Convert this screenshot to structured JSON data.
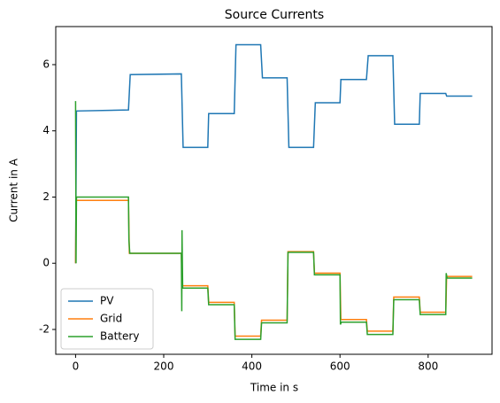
{
  "chart_data": {
    "type": "line",
    "title": "Source Currents",
    "x_label": "Time in s",
    "y_label": "Current in A",
    "xlim": [
      -45,
      945
    ],
    "ylim": [
      -2.75,
      7.15
    ],
    "xticks": [
      0,
      200,
      400,
      600,
      800
    ],
    "yticks": [
      -2,
      0,
      2,
      4,
      6
    ],
    "legend": "lower left",
    "grid": false,
    "series": [
      {
        "name": "PV",
        "color": "#1f77b4",
        "x": [
          0,
          2,
          120,
          124,
          240,
          244,
          300,
          302,
          360,
          364,
          420,
          424,
          480,
          484,
          540,
          544,
          600,
          602,
          660,
          664,
          720,
          724,
          780,
          782,
          840,
          842,
          900
        ],
        "values": [
          0,
          4.6,
          4.63,
          5.7,
          5.72,
          3.5,
          3.5,
          4.52,
          4.52,
          6.6,
          6.6,
          5.6,
          5.6,
          3.5,
          3.5,
          4.85,
          4.85,
          5.55,
          5.55,
          6.27,
          6.27,
          4.2,
          4.2,
          5.13,
          5.13,
          5.05,
          5.05
        ]
      },
      {
        "name": "Grid",
        "color": "#ff7f0e",
        "x": [
          0,
          1,
          120,
          122,
          240,
          242,
          300,
          302,
          360,
          362,
          420,
          422,
          480,
          482,
          540,
          542,
          600,
          602,
          660,
          662,
          720,
          722,
          780,
          782,
          840,
          842,
          900
        ],
        "values": [
          0,
          1.9,
          1.9,
          0.3,
          0.3,
          -0.68,
          -0.68,
          -1.18,
          -1.18,
          -2.2,
          -2.2,
          -1.72,
          -1.72,
          0.35,
          0.35,
          -0.3,
          -0.3,
          -1.7,
          -1.7,
          -2.05,
          -2.05,
          -1.02,
          -1.02,
          -1.48,
          -1.48,
          -0.4,
          -0.4
        ]
      },
      {
        "name": "Battery",
        "color": "#2ca02c",
        "x": [
          0,
          1,
          2,
          120,
          121,
          123,
          240,
          241,
          241.5,
          243,
          300,
          302,
          360,
          362,
          420,
          422,
          480,
          482,
          540,
          542,
          600,
          601,
          603,
          660,
          662,
          720,
          722,
          780,
          782,
          840,
          841,
          843,
          900
        ],
        "values": [
          4.9,
          0,
          2.0,
          2.0,
          0.7,
          0.3,
          0.3,
          -1.45,
          1.0,
          -0.75,
          -0.75,
          -1.25,
          -1.25,
          -2.3,
          -2.3,
          -1.8,
          -1.8,
          0.33,
          0.33,
          -0.35,
          -0.35,
          -1.85,
          -1.78,
          -1.78,
          -2.15,
          -2.15,
          -1.1,
          -1.1,
          -1.55,
          -1.55,
          -0.3,
          -0.45,
          -0.45
        ]
      }
    ]
  }
}
